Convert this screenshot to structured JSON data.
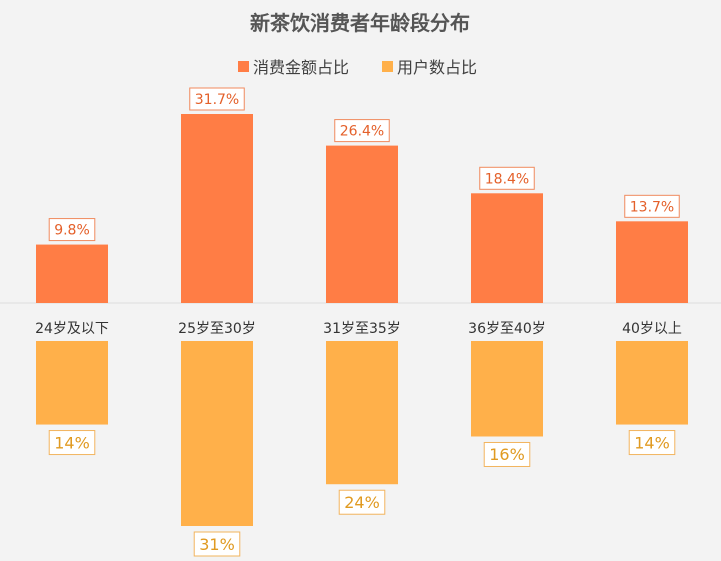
{
  "chart_data": {
    "type": "bar",
    "title": "新茶饮消费者年龄段分布",
    "categories": [
      "24岁及以下",
      "25岁至30岁",
      "31岁至35岁",
      "36岁至40岁",
      "40岁以上"
    ],
    "series": [
      {
        "name": "消费金额占比",
        "values": [
          9.8,
          31.7,
          26.4,
          18.4,
          13.7
        ],
        "labels": [
          "9.8%",
          "31.7%",
          "26.4%",
          "18.4%",
          "13.7%"
        ],
        "color": "#ff7d45"
      },
      {
        "name": "用户数占比",
        "values": [
          14,
          31,
          24,
          16,
          14
        ],
        "labels": [
          "14%",
          "31%",
          "24%",
          "16%",
          "14%"
        ],
        "color": "#ffb04a"
      }
    ],
    "layout": "mirrored (first series above axis, second series below)",
    "legend_position": "top",
    "grid": false
  }
}
